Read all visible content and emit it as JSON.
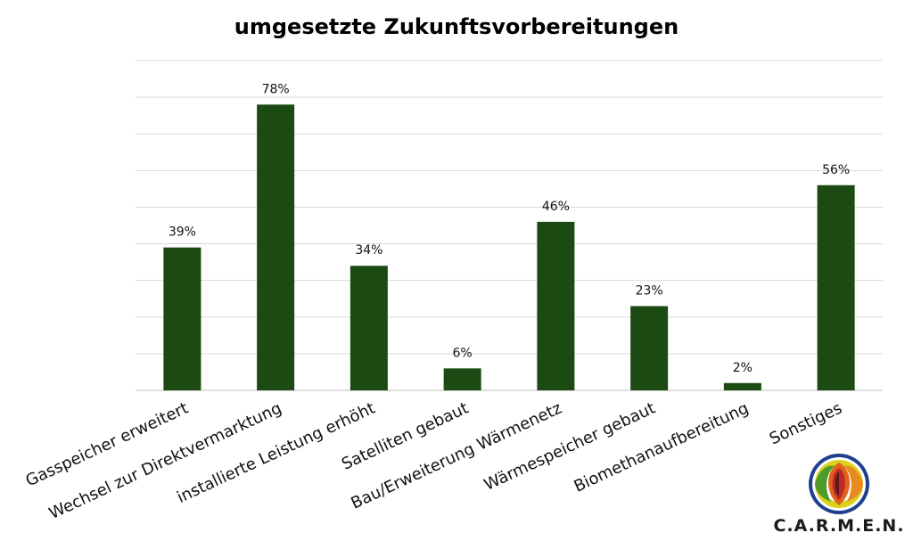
{
  "chart_data": {
    "type": "bar",
    "title": "umgesetzte Zukunftsvorbereitungen",
    "categories": [
      "Gasspeicher erweitert",
      "Wechsel zur Direktvermarktung",
      "installierte Leistung erhöht",
      "Satelliten gebaut",
      "Bau/Erweiterung Wärmenetz",
      "Wärmespeicher gebaut",
      "Biomethanaufbereitung",
      "Sonstiges"
    ],
    "values": [
      39,
      78,
      34,
      6,
      46,
      23,
      2,
      56
    ],
    "value_labels": [
      "39%",
      "78%",
      "34%",
      "6%",
      "46%",
      "23%",
      "2%",
      "56%"
    ],
    "ylim": [
      0,
      90
    ],
    "grid": true,
    "bar_color": "#1b4a12"
  },
  "logo": {
    "text": "C.A.R.M.E.N."
  }
}
